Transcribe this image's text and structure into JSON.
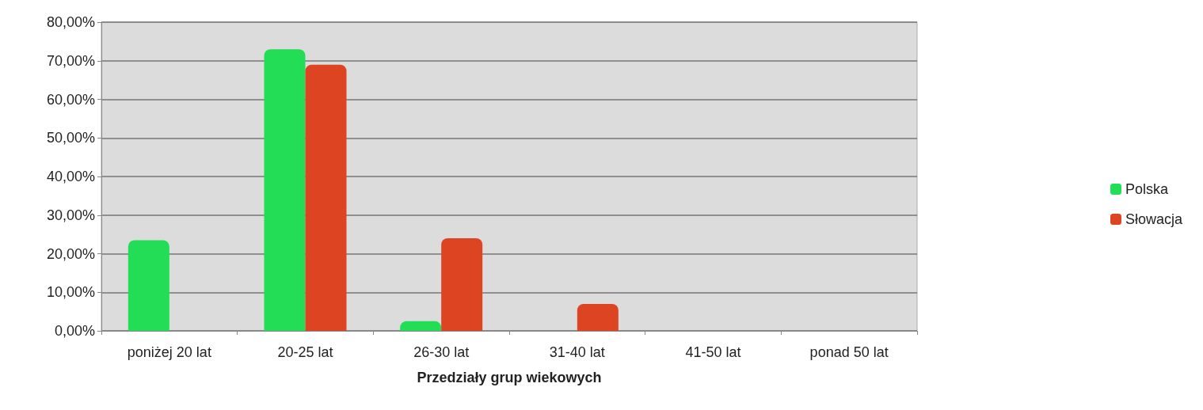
{
  "chart_data": {
    "type": "bar",
    "xlabel": "Przedziały grup wiekowych",
    "categories": [
      "poniżej 20 lat",
      "20-25 lat",
      "26-30 lat",
      "31-40 lat",
      "41-50 lat",
      "ponad 50 lat"
    ],
    "series": [
      {
        "name": "Polska",
        "color": "#22dd55",
        "values": [
          23.5,
          73,
          2.5,
          0,
          0,
          0
        ]
      },
      {
        "name": "Słowacja",
        "color": "#dd4422",
        "values": [
          0,
          69,
          24,
          7,
          0,
          0
        ]
      }
    ],
    "ylim": [
      0,
      80
    ],
    "yticks": [
      {
        "value": 0,
        "label": "0,00%"
      },
      {
        "value": 10,
        "label": "10,00%"
      },
      {
        "value": 20,
        "label": "20,00%"
      },
      {
        "value": 30,
        "label": "30,00%"
      },
      {
        "value": 40,
        "label": "40,00%"
      },
      {
        "value": 50,
        "label": "50,00%"
      },
      {
        "value": 60,
        "label": "60,00%"
      },
      {
        "value": 70,
        "label": "70,00%"
      },
      {
        "value": 80,
        "label": "80,00%"
      }
    ],
    "grid": "y",
    "legend": "right"
  }
}
